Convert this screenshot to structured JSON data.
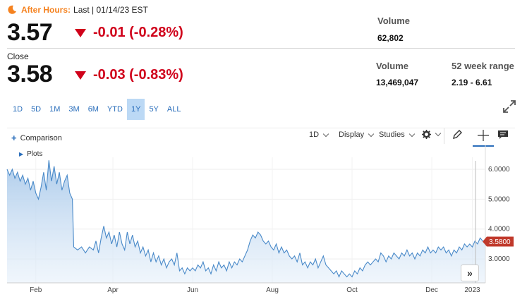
{
  "after_hours": {
    "label": "After Hours:",
    "detail": "Last | 01/14/23 EST",
    "price": "3.57",
    "change": "-0.01 (-0.28%)",
    "volume_label": "Volume",
    "volume_value": "62,802"
  },
  "close": {
    "label": "Close",
    "price": "3.58",
    "change": "-0.03 (-0.83%)",
    "volume_label": "Volume",
    "volume_value": "13,469,047",
    "range_label": "52 week range",
    "range_value": "2.19 - 6.61"
  },
  "ranges": [
    "1D",
    "5D",
    "1M",
    "3M",
    "6M",
    "YTD",
    "1Y",
    "5Y",
    "ALL"
  ],
  "active_range": "1Y",
  "toolbar": {
    "comparison": "Comparison",
    "interval": "1D",
    "display": "Display",
    "studies": "Studies",
    "plots": "Plots"
  },
  "colors": {
    "accent": "#2a6ebb",
    "down": "#d0021b",
    "after_hours": "#f5821f",
    "area_fill": "#bcd6ee",
    "line": "#4a8ac9"
  },
  "chart_data": {
    "type": "area",
    "ylim": [
      2.2,
      6.4
    ],
    "yticks": [
      "6.0000",
      "5.0000",
      "4.0000",
      "3.0000"
    ],
    "ytick_values": [
      6.0,
      5.0,
      4.0,
      3.0
    ],
    "month_labels": [
      {
        "label": "Feb",
        "day": 22
      },
      {
        "label": "Apr",
        "day": 81
      },
      {
        "label": "Jun",
        "day": 142
      },
      {
        "label": "Aug",
        "day": 203
      },
      {
        "label": "Oct",
        "day": 264
      },
      {
        "label": "Dec",
        "day": 325
      },
      {
        "label": "2023",
        "day": 356
      }
    ],
    "last_price_label": "3.5800",
    "last_price": 3.58,
    "days_span": 366,
    "series": [
      {
        "x": 0,
        "y": 6.0
      },
      {
        "x": 2,
        "y": 5.8
      },
      {
        "x": 4,
        "y": 6.0
      },
      {
        "x": 6,
        "y": 5.7
      },
      {
        "x": 8,
        "y": 5.9
      },
      {
        "x": 10,
        "y": 5.6
      },
      {
        "x": 12,
        "y": 5.8
      },
      {
        "x": 14,
        "y": 5.5
      },
      {
        "x": 16,
        "y": 5.7
      },
      {
        "x": 18,
        "y": 5.3
      },
      {
        "x": 20,
        "y": 5.6
      },
      {
        "x": 22,
        "y": 5.2
      },
      {
        "x": 24,
        "y": 5.0
      },
      {
        "x": 26,
        "y": 5.4
      },
      {
        "x": 28,
        "y": 5.9
      },
      {
        "x": 30,
        "y": 5.3
      },
      {
        "x": 32,
        "y": 6.3
      },
      {
        "x": 34,
        "y": 5.6
      },
      {
        "x": 36,
        "y": 6.1
      },
      {
        "x": 38,
        "y": 5.5
      },
      {
        "x": 40,
        "y": 5.9
      },
      {
        "x": 42,
        "y": 5.3
      },
      {
        "x": 44,
        "y": 5.6
      },
      {
        "x": 46,
        "y": 5.8
      },
      {
        "x": 48,
        "y": 5.2
      },
      {
        "x": 50,
        "y": 5.0
      },
      {
        "x": 51,
        "y": 3.4
      },
      {
        "x": 54,
        "y": 3.3
      },
      {
        "x": 57,
        "y": 3.4
      },
      {
        "x": 60,
        "y": 3.2
      },
      {
        "x": 63,
        "y": 3.4
      },
      {
        "x": 66,
        "y": 3.3
      },
      {
        "x": 68,
        "y": 3.6
      },
      {
        "x": 70,
        "y": 3.2
      },
      {
        "x": 72,
        "y": 3.7
      },
      {
        "x": 74,
        "y": 4.1
      },
      {
        "x": 76,
        "y": 3.7
      },
      {
        "x": 78,
        "y": 3.9
      },
      {
        "x": 80,
        "y": 3.5
      },
      {
        "x": 82,
        "y": 3.8
      },
      {
        "x": 84,
        "y": 3.4
      },
      {
        "x": 86,
        "y": 3.9
      },
      {
        "x": 88,
        "y": 3.5
      },
      {
        "x": 90,
        "y": 3.3
      },
      {
        "x": 92,
        "y": 3.9
      },
      {
        "x": 94,
        "y": 3.5
      },
      {
        "x": 96,
        "y": 3.8
      },
      {
        "x": 98,
        "y": 3.4
      },
      {
        "x": 100,
        "y": 3.6
      },
      {
        "x": 102,
        "y": 3.2
      },
      {
        "x": 104,
        "y": 3.4
      },
      {
        "x": 106,
        "y": 3.1
      },
      {
        "x": 108,
        "y": 3.3
      },
      {
        "x": 110,
        "y": 2.9
      },
      {
        "x": 112,
        "y": 3.2
      },
      {
        "x": 114,
        "y": 2.9
      },
      {
        "x": 116,
        "y": 3.1
      },
      {
        "x": 118,
        "y": 2.8
      },
      {
        "x": 120,
        "y": 3.0
      },
      {
        "x": 122,
        "y": 2.7
      },
      {
        "x": 124,
        "y": 2.9
      },
      {
        "x": 126,
        "y": 3.0
      },
      {
        "x": 128,
        "y": 2.8
      },
      {
        "x": 130,
        "y": 3.2
      },
      {
        "x": 132,
        "y": 2.6
      },
      {
        "x": 134,
        "y": 2.7
      },
      {
        "x": 136,
        "y": 2.5
      },
      {
        "x": 138,
        "y": 2.7
      },
      {
        "x": 140,
        "y": 2.6
      },
      {
        "x": 142,
        "y": 2.7
      },
      {
        "x": 144,
        "y": 2.6
      },
      {
        "x": 146,
        "y": 2.8
      },
      {
        "x": 148,
        "y": 2.7
      },
      {
        "x": 150,
        "y": 2.9
      },
      {
        "x": 152,
        "y": 2.6
      },
      {
        "x": 154,
        "y": 2.7
      },
      {
        "x": 156,
        "y": 2.5
      },
      {
        "x": 158,
        "y": 2.8
      },
      {
        "x": 160,
        "y": 2.6
      },
      {
        "x": 162,
        "y": 2.9
      },
      {
        "x": 164,
        "y": 2.7
      },
      {
        "x": 166,
        "y": 2.8
      },
      {
        "x": 168,
        "y": 2.6
      },
      {
        "x": 170,
        "y": 2.9
      },
      {
        "x": 172,
        "y": 2.7
      },
      {
        "x": 174,
        "y": 2.9
      },
      {
        "x": 176,
        "y": 2.8
      },
      {
        "x": 178,
        "y": 3.0
      },
      {
        "x": 180,
        "y": 2.9
      },
      {
        "x": 182,
        "y": 3.1
      },
      {
        "x": 184,
        "y": 3.3
      },
      {
        "x": 186,
        "y": 3.6
      },
      {
        "x": 188,
        "y": 3.8
      },
      {
        "x": 190,
        "y": 3.7
      },
      {
        "x": 192,
        "y": 3.9
      },
      {
        "x": 194,
        "y": 3.8
      },
      {
        "x": 196,
        "y": 3.6
      },
      {
        "x": 198,
        "y": 3.5
      },
      {
        "x": 200,
        "y": 3.6
      },
      {
        "x": 202,
        "y": 3.4
      },
      {
        "x": 204,
        "y": 3.3
      },
      {
        "x": 206,
        "y": 3.5
      },
      {
        "x": 208,
        "y": 3.2
      },
      {
        "x": 210,
        "y": 3.4
      },
      {
        "x": 212,
        "y": 3.2
      },
      {
        "x": 214,
        "y": 3.3
      },
      {
        "x": 216,
        "y": 3.1
      },
      {
        "x": 218,
        "y": 3.0
      },
      {
        "x": 220,
        "y": 3.1
      },
      {
        "x": 222,
        "y": 2.9
      },
      {
        "x": 224,
        "y": 3.2
      },
      {
        "x": 226,
        "y": 2.8
      },
      {
        "x": 228,
        "y": 2.9
      },
      {
        "x": 230,
        "y": 2.7
      },
      {
        "x": 232,
        "y": 2.9
      },
      {
        "x": 234,
        "y": 2.8
      },
      {
        "x": 236,
        "y": 3.0
      },
      {
        "x": 238,
        "y": 2.7
      },
      {
        "x": 240,
        "y": 2.9
      },
      {
        "x": 242,
        "y": 3.1
      },
      {
        "x": 244,
        "y": 2.8
      },
      {
        "x": 246,
        "y": 2.7
      },
      {
        "x": 248,
        "y": 2.6
      },
      {
        "x": 250,
        "y": 2.5
      },
      {
        "x": 252,
        "y": 2.6
      },
      {
        "x": 254,
        "y": 2.4
      },
      {
        "x": 256,
        "y": 2.6
      },
      {
        "x": 258,
        "y": 2.5
      },
      {
        "x": 260,
        "y": 2.4
      },
      {
        "x": 262,
        "y": 2.5
      },
      {
        "x": 264,
        "y": 2.4
      },
      {
        "x": 266,
        "y": 2.6
      },
      {
        "x": 268,
        "y": 2.5
      },
      {
        "x": 270,
        "y": 2.7
      },
      {
        "x": 272,
        "y": 2.6
      },
      {
        "x": 274,
        "y": 2.8
      },
      {
        "x": 276,
        "y": 2.9
      },
      {
        "x": 278,
        "y": 2.8
      },
      {
        "x": 280,
        "y": 2.9
      },
      {
        "x": 282,
        "y": 3.0
      },
      {
        "x": 284,
        "y": 2.9
      },
      {
        "x": 286,
        "y": 3.2
      },
      {
        "x": 288,
        "y": 3.1
      },
      {
        "x": 290,
        "y": 2.9
      },
      {
        "x": 292,
        "y": 3.1
      },
      {
        "x": 294,
        "y": 3.0
      },
      {
        "x": 296,
        "y": 3.2
      },
      {
        "x": 298,
        "y": 3.1
      },
      {
        "x": 300,
        "y": 3.0
      },
      {
        "x": 302,
        "y": 3.2
      },
      {
        "x": 304,
        "y": 3.1
      },
      {
        "x": 306,
        "y": 3.3
      },
      {
        "x": 308,
        "y": 3.1
      },
      {
        "x": 310,
        "y": 3.2
      },
      {
        "x": 312,
        "y": 3.0
      },
      {
        "x": 314,
        "y": 3.2
      },
      {
        "x": 316,
        "y": 3.1
      },
      {
        "x": 318,
        "y": 3.3
      },
      {
        "x": 320,
        "y": 3.2
      },
      {
        "x": 322,
        "y": 3.4
      },
      {
        "x": 324,
        "y": 3.2
      },
      {
        "x": 326,
        "y": 3.3
      },
      {
        "x": 328,
        "y": 3.2
      },
      {
        "x": 330,
        "y": 3.4
      },
      {
        "x": 332,
        "y": 3.3
      },
      {
        "x": 334,
        "y": 3.4
      },
      {
        "x": 336,
        "y": 3.2
      },
      {
        "x": 338,
        "y": 3.3
      },
      {
        "x": 340,
        "y": 3.1
      },
      {
        "x": 342,
        "y": 3.3
      },
      {
        "x": 344,
        "y": 3.2
      },
      {
        "x": 346,
        "y": 3.4
      },
      {
        "x": 348,
        "y": 3.3
      },
      {
        "x": 350,
        "y": 3.5
      },
      {
        "x": 352,
        "y": 3.4
      },
      {
        "x": 354,
        "y": 3.5
      },
      {
        "x": 356,
        "y": 3.4
      },
      {
        "x": 358,
        "y": 3.6
      },
      {
        "x": 360,
        "y": 3.5
      },
      {
        "x": 362,
        "y": 3.7
      },
      {
        "x": 364,
        "y": 3.6
      },
      {
        "x": 366,
        "y": 3.58
      }
    ]
  }
}
